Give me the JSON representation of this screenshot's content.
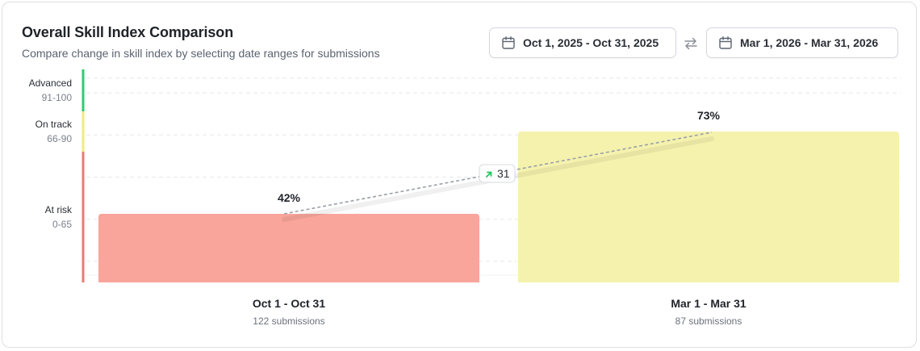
{
  "header": {
    "title": "Overall Skill Index Comparison",
    "subtitle": "Compare change in skill index by selecting date ranges for submissions"
  },
  "controls": {
    "range_a": "Oct 1, 2025 - Oct 31, 2025",
    "range_b": "Mar 1, 2026 - Mar 31, 2026",
    "calendar_icon": "calendar-icon",
    "swap_icon": "swap-arrows-icon"
  },
  "levels": [
    {
      "name": "Advanced",
      "range": "91-100",
      "min": 91,
      "max": 100,
      "color": "#2ecc71"
    },
    {
      "name": "On track",
      "range": "66-90",
      "min": 66,
      "max": 90,
      "color": "#f0ec7c"
    },
    {
      "name": "At risk",
      "range": "0-65",
      "min": 0,
      "max": 65,
      "color": "#ec7a73"
    }
  ],
  "change_badge": {
    "value": "31",
    "icon": "arrow-up-right-icon",
    "color": "#22c55e"
  },
  "chart_data": {
    "type": "bar",
    "categories": [
      "Oct 1 - Oct 31",
      "Mar 1 - Mar 31"
    ],
    "values": [
      42,
      73
    ],
    "value_labels": [
      "42%",
      "73%"
    ],
    "submissions": [
      "122 submissions",
      "87 submissions"
    ],
    "bar_colors": [
      "#f9a59b",
      "#f5f2ae"
    ],
    "ylim": [
      0,
      100
    ],
    "grid": true,
    "connector": "dashed line between bar values with change badge"
  }
}
